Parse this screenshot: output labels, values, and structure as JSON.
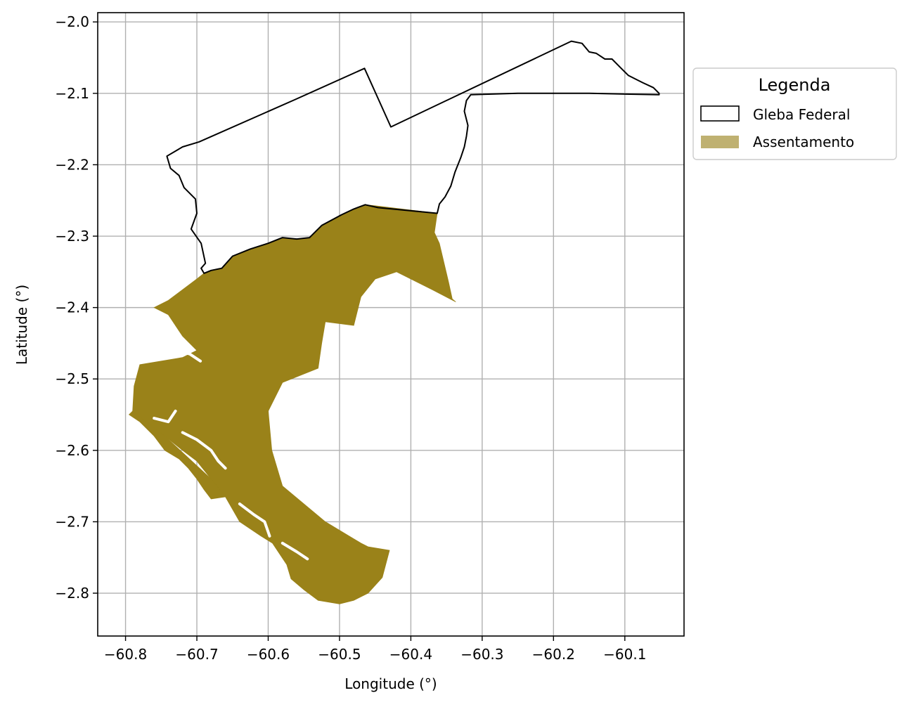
{
  "chart_data": {
    "type": "map",
    "xlabel": "Longitude (°)",
    "ylabel": "Latitude (°)",
    "xlim": [
      -60.839,
      -60.017
    ],
    "ylim": [
      -2.86,
      -1.987
    ],
    "x_ticks": [
      {
        "value": -60.8,
        "label": "−60.8"
      },
      {
        "value": -60.7,
        "label": "−60.7"
      },
      {
        "value": -60.6,
        "label": "−60.6"
      },
      {
        "value": -60.5,
        "label": "−60.5"
      },
      {
        "value": -60.4,
        "label": "−60.4"
      },
      {
        "value": -60.3,
        "label": "−60.3"
      },
      {
        "value": -60.2,
        "label": "−60.2"
      },
      {
        "value": -60.1,
        "label": "−60.1"
      }
    ],
    "y_ticks": [
      {
        "value": -2.0,
        "label": "−2.0"
      },
      {
        "value": -2.1,
        "label": "−2.1"
      },
      {
        "value": -2.2,
        "label": "−2.2"
      },
      {
        "value": -2.3,
        "label": "−2.3"
      },
      {
        "value": -2.4,
        "label": "−2.4"
      },
      {
        "value": -2.5,
        "label": "−2.5"
      },
      {
        "value": -2.6,
        "label": "−2.6"
      },
      {
        "value": -2.7,
        "label": "−2.7"
      },
      {
        "value": -2.8,
        "label": "−2.8"
      }
    ],
    "grid": true,
    "legend": {
      "title": "Legenda",
      "placement": "outside-right-top",
      "entries": [
        {
          "label": "Gleba Federal",
          "style": "outline",
          "color": "#000000"
        },
        {
          "label": "Assentamento",
          "style": "fill",
          "color": "#9a8219",
          "legend_color": "#bfb171"
        }
      ]
    },
    "series": [
      {
        "name": "Gleba Federal",
        "geometry": "polygon-outline",
        "color": "#000000",
        "points": [
          [
            -60.697,
            -2.168
          ],
          [
            -60.563,
            -2.109
          ],
          [
            -60.465,
            -2.065
          ],
          [
            -60.428,
            -2.147
          ],
          [
            -60.175,
            -2.027
          ],
          [
            -60.16,
            -2.03
          ],
          [
            -60.15,
            -2.042
          ],
          [
            -60.14,
            -2.044
          ],
          [
            -60.128,
            -2.052
          ],
          [
            -60.118,
            -2.052
          ],
          [
            -60.105,
            -2.065
          ],
          [
            -60.095,
            -2.075
          ],
          [
            -60.085,
            -2.08
          ],
          [
            -60.075,
            -2.085
          ],
          [
            -60.06,
            -2.092
          ],
          [
            -60.052,
            -2.1
          ],
          [
            -60.052,
            -2.102
          ],
          [
            -60.15,
            -2.1
          ],
          [
            -60.25,
            -2.1
          ],
          [
            -60.316,
            -2.102
          ],
          [
            -60.322,
            -2.11
          ],
          [
            -60.325,
            -2.125
          ],
          [
            -60.32,
            -2.145
          ],
          [
            -60.322,
            -2.16
          ],
          [
            -60.325,
            -2.175
          ],
          [
            -60.33,
            -2.19
          ],
          [
            -60.338,
            -2.21
          ],
          [
            -60.344,
            -2.23
          ],
          [
            -60.352,
            -2.245
          ],
          [
            -60.36,
            -2.255
          ],
          [
            -60.363,
            -2.268
          ],
          [
            -60.446,
            -2.26
          ],
          [
            -60.464,
            -2.256
          ],
          [
            -60.48,
            -2.262
          ],
          [
            -60.497,
            -2.27
          ],
          [
            -60.525,
            -2.285
          ],
          [
            -60.542,
            -2.302
          ],
          [
            -60.56,
            -2.304
          ],
          [
            -60.58,
            -2.302
          ],
          [
            -60.6,
            -2.31
          ],
          [
            -60.625,
            -2.318
          ],
          [
            -60.65,
            -2.328
          ],
          [
            -60.665,
            -2.345
          ],
          [
            -60.68,
            -2.348
          ],
          [
            -60.69,
            -2.352
          ],
          [
            -60.694,
            -2.345
          ],
          [
            -60.688,
            -2.338
          ],
          [
            -60.694,
            -2.31
          ],
          [
            -60.708,
            -2.29
          ],
          [
            -60.7,
            -2.268
          ],
          [
            -60.702,
            -2.248
          ],
          [
            -60.718,
            -2.232
          ],
          [
            -60.725,
            -2.215
          ],
          [
            -60.737,
            -2.205
          ],
          [
            -60.742,
            -2.188
          ],
          [
            -60.72,
            -2.175
          ],
          [
            -60.697,
            -2.168
          ]
        ]
      },
      {
        "name": "Assentamento",
        "geometry": "polygon-fill",
        "color": "#9a8219",
        "points": [
          [
            -60.446,
            -2.258
          ],
          [
            -60.363,
            -2.268
          ],
          [
            -60.367,
            -2.295
          ],
          [
            -60.36,
            -2.31
          ],
          [
            -60.347,
            -2.365
          ],
          [
            -60.342,
            -2.388
          ],
          [
            -60.337,
            -2.392
          ],
          [
            -60.37,
            -2.375
          ],
          [
            -60.42,
            -2.35
          ],
          [
            -60.45,
            -2.36
          ],
          [
            -60.47,
            -2.385
          ],
          [
            -60.48,
            -2.425
          ],
          [
            -60.52,
            -2.42
          ],
          [
            -60.525,
            -2.45
          ],
          [
            -60.53,
            -2.485
          ],
          [
            -60.58,
            -2.505
          ],
          [
            -60.6,
            -2.545
          ],
          [
            -60.595,
            -2.6
          ],
          [
            -60.58,
            -2.65
          ],
          [
            -60.52,
            -2.7
          ],
          [
            -60.47,
            -2.73
          ],
          [
            -60.46,
            -2.735
          ],
          [
            -60.43,
            -2.74
          ],
          [
            -60.44,
            -2.778
          ],
          [
            -60.46,
            -2.8
          ],
          [
            -60.48,
            -2.81
          ],
          [
            -60.5,
            -2.815
          ],
          [
            -60.53,
            -2.81
          ],
          [
            -60.55,
            -2.795
          ],
          [
            -60.568,
            -2.78
          ],
          [
            -60.574,
            -2.76
          ],
          [
            -60.594,
            -2.73
          ],
          [
            -60.61,
            -2.72
          ],
          [
            -60.64,
            -2.7
          ],
          [
            -60.66,
            -2.665
          ],
          [
            -60.68,
            -2.64
          ],
          [
            -60.7,
            -2.615
          ],
          [
            -60.72,
            -2.6
          ],
          [
            -60.745,
            -2.58
          ],
          [
            -60.79,
            -2.545
          ],
          [
            -60.788,
            -2.51
          ],
          [
            -60.78,
            -2.48
          ],
          [
            -60.72,
            -2.47
          ],
          [
            -60.7,
            -2.46
          ],
          [
            -60.72,
            -2.44
          ],
          [
            -60.74,
            -2.41
          ],
          [
            -60.76,
            -2.4
          ],
          [
            -60.74,
            -2.39
          ],
          [
            -60.7,
            -2.36
          ],
          [
            -60.69,
            -2.352
          ],
          [
            -60.68,
            -2.348
          ],
          [
            -60.665,
            -2.345
          ],
          [
            -60.65,
            -2.328
          ],
          [
            -60.625,
            -2.318
          ],
          [
            -60.6,
            -2.31
          ],
          [
            -60.58,
            -2.302
          ],
          [
            -60.56,
            -2.304
          ],
          [
            -60.542,
            -2.302
          ],
          [
            -60.525,
            -2.285
          ],
          [
            -60.497,
            -2.27
          ],
          [
            -60.48,
            -2.262
          ],
          [
            -60.464,
            -2.256
          ],
          [
            -60.446,
            -2.258
          ]
        ]
      },
      {
        "name": "",
        "geometry": "polygon-fill",
        "color": "#9a8219",
        "points": [
          [
            -60.79,
            -2.545
          ],
          [
            -60.795,
            -2.55
          ],
          [
            -60.78,
            -2.56
          ],
          [
            -60.76,
            -2.58
          ],
          [
            -60.745,
            -2.6
          ],
          [
            -60.725,
            -2.612
          ],
          [
            -60.712,
            -2.625
          ],
          [
            -60.7,
            -2.64
          ],
          [
            -60.69,
            -2.655
          ],
          [
            -60.68,
            -2.668
          ],
          [
            -60.66,
            -2.665
          ],
          [
            -60.68,
            -2.64
          ],
          [
            -60.745,
            -2.58
          ],
          [
            -60.79,
            -2.545
          ]
        ]
      }
    ],
    "water_channels": [
      [
        [
          -60.72,
          -2.575
        ],
        [
          -60.7,
          -2.585
        ],
        [
          -60.68,
          -2.6
        ],
        [
          -60.67,
          -2.615
        ],
        [
          -60.66,
          -2.625
        ]
      ],
      [
        [
          -60.64,
          -2.675
        ],
        [
          -60.62,
          -2.69
        ],
        [
          -60.605,
          -2.7
        ],
        [
          -60.598,
          -2.72
        ]
      ],
      [
        [
          -60.58,
          -2.73
        ],
        [
          -60.56,
          -2.742
        ],
        [
          -60.545,
          -2.752
        ]
      ],
      [
        [
          -60.73,
          -2.46
        ],
        [
          -60.71,
          -2.465
        ],
        [
          -60.695,
          -2.475
        ]
      ],
      [
        [
          -60.76,
          -2.555
        ],
        [
          -60.74,
          -2.56
        ],
        [
          -60.73,
          -2.545
        ]
      ]
    ]
  }
}
